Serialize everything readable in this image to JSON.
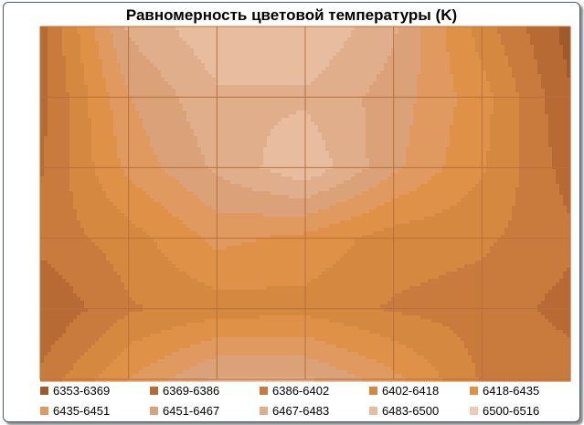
{
  "chart_data": {
    "type": "heatmap",
    "title": "Равномерность цветовой температуры (K)",
    "grid": true,
    "legend_position": "bottom",
    "levels": [
      {
        "label": "6353-6369",
        "min": 6353,
        "max": 6369,
        "color": "#a05a2a"
      },
      {
        "label": "6369-6386",
        "min": 6369,
        "max": 6386,
        "color": "#b86a34"
      },
      {
        "label": "6386-6402",
        "min": 6386,
        "max": 6402,
        "color": "#c97b3e"
      },
      {
        "label": "6402-6418",
        "min": 6402,
        "max": 6418,
        "color": "#d5883f"
      },
      {
        "label": "6418-6435",
        "min": 6418,
        "max": 6435,
        "color": "#df9148"
      },
      {
        "label": "6435-6451",
        "min": 6435,
        "max": 6451,
        "color": "#e09a60"
      },
      {
        "label": "6451-6467",
        "min": 6451,
        "max": 6467,
        "color": "#dba27a"
      },
      {
        "label": "6467-6483",
        "min": 6467,
        "max": 6483,
        "color": "#e1ae8c"
      },
      {
        "label": "6483-6500",
        "min": 6483,
        "max": 6500,
        "color": "#e8bc9f"
      },
      {
        "label": "6500-6516",
        "min": 6500,
        "max": 6516,
        "color": "#efcbb3"
      }
    ],
    "grid_values": [
      [
        6380,
        6470,
        6496,
        6500,
        6470,
        6410,
        6362
      ],
      [
        6380,
        6450,
        6480,
        6480,
        6460,
        6425,
        6370
      ],
      [
        6384,
        6440,
        6470,
        6496,
        6455,
        6420,
        6378
      ],
      [
        6392,
        6410,
        6440,
        6430,
        6410,
        6405,
        6390
      ],
      [
        6370,
        6400,
        6410,
        6412,
        6400,
        6395,
        6380
      ],
      [
        6390,
        6435,
        6470,
        6470,
        6440,
        6400,
        6395
      ]
    ]
  }
}
